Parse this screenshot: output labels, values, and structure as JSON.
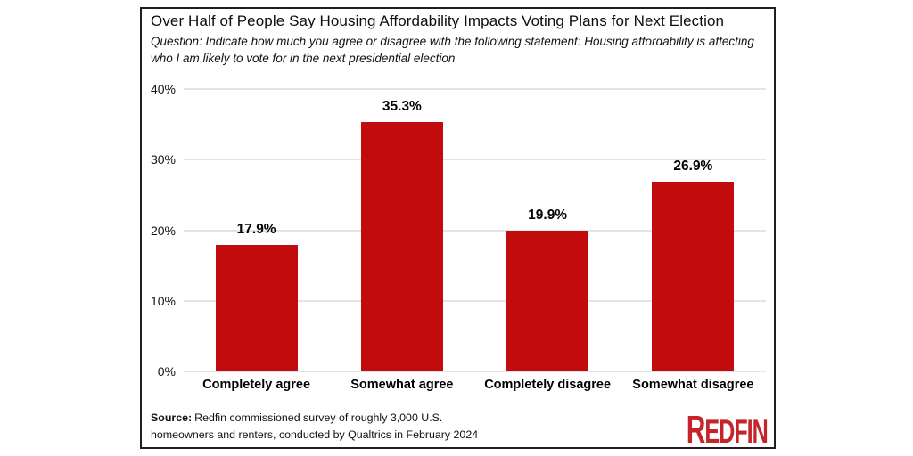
{
  "header": {
    "title": "Over Half of People Say Housing Affordability Impacts Voting Plans for Next Election",
    "subtitle": "Question: Indicate how much you agree or disagree with the following statement: Housing affordability is affecting who I am likely to vote for in the next presidential election"
  },
  "chart_data": {
    "type": "bar",
    "title": "Over Half of People Say Housing Affordability Impacts Voting Plans for Next Election",
    "subtitle": "Question: Indicate how much you agree or disagree with the following statement: Housing affordability is affecting who I am likely to vote for in the next presidential election",
    "categories": [
      "Completely agree",
      "Somewhat agree",
      "Completely disagree",
      "Somewhat disagree"
    ],
    "values": [
      17.9,
      35.3,
      19.9,
      26.9
    ],
    "data_labels": [
      "17.9%",
      "35.3%",
      "19.9%",
      "26.9%"
    ],
    "xlabel": "",
    "ylabel": "",
    "ylim": [
      0,
      40
    ],
    "ytick_labels": [
      "0%",
      "10%",
      "20%",
      "30%",
      "40%"
    ],
    "grid": "horizontal",
    "legend": false,
    "bar_color": "#c20b0d",
    "gridline_color": "#e4e4e4"
  },
  "footer": {
    "source_label": "Source:",
    "source_rest_line1": "Redfin commissioned survey of roughly 3,000 U.S.",
    "source_line2": "homeowners and renters, conducted by Qualtrics in February 2024",
    "logo_first": "R",
    "logo_rest": "EDFIN",
    "logo_color": "#c5242b"
  }
}
